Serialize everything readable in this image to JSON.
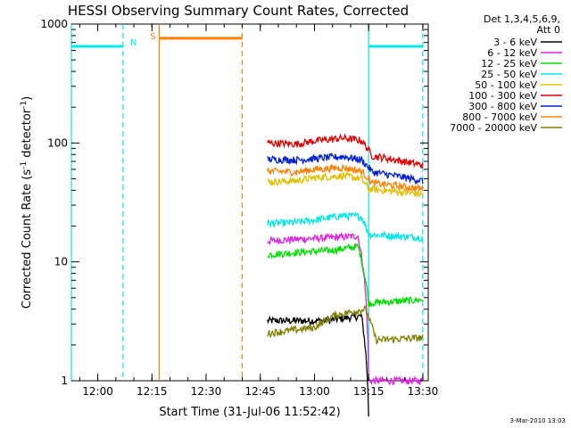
{
  "chart_data": {
    "type": "line",
    "title": "HESSI Observing Summary Count Rates, Corrected",
    "xlabel": "Start Time (31-Jul-06 11:52:42)",
    "ylabel_main": "Corrected Count Rate (s",
    "ylabel_sup1": "-1",
    "ylabel_mid": " detector",
    "ylabel_sup2": "-1",
    "ylabel_end": ")",
    "yscale": "log",
    "ylim": [
      1,
      1000
    ],
    "xlim": [
      "11:52:42",
      "13:31:30"
    ],
    "x_tick_labels": [
      "12:00",
      "12:15",
      "12:30",
      "12:45",
      "13:00",
      "13:15",
      "13:30"
    ],
    "y_tick_labels": [
      "1",
      "10",
      "100",
      "1000"
    ],
    "legend_header": [
      "Det 1,3,4,5,6,9,",
      "Att 0"
    ],
    "legend_position": "top-right-outside",
    "footer": "3-Mar-2010 13:03",
    "series": [
      {
        "name": "3 - 6 keV",
        "color": "#000000",
        "points": [
          [
            "12:47",
            3.2
          ],
          [
            "13:03",
            3.2
          ],
          [
            "13:13",
            3.5
          ],
          [
            "13:15",
            0.5
          ]
        ]
      },
      {
        "name": "6 - 12 keV",
        "color": "#e020e0",
        "points": [
          [
            "12:47",
            15
          ],
          [
            "12:55",
            15.5
          ],
          [
            "13:05",
            16
          ],
          [
            "13:12",
            16.5
          ],
          [
            "13:15",
            1.0
          ],
          [
            "13:30",
            1.0
          ]
        ]
      },
      {
        "name": "12 - 25 keV",
        "color": "#00e000",
        "points": [
          [
            "12:47",
            11.5
          ],
          [
            "12:55",
            12
          ],
          [
            "13:05",
            12.5
          ],
          [
            "13:12",
            13.5
          ],
          [
            "13:15",
            4.5
          ],
          [
            "13:30",
            4.8
          ]
        ]
      },
      {
        "name": "25 - 50 keV",
        "color": "#00e8e8",
        "points": [
          [
            "12:47",
            21
          ],
          [
            "12:55",
            21.5
          ],
          [
            "13:00",
            22.5
          ],
          [
            "13:08",
            24.5
          ],
          [
            "13:13",
            24
          ],
          [
            "13:15",
            17
          ],
          [
            "13:30",
            16
          ]
        ]
      },
      {
        "name": "50 - 100 keV",
        "color": "#e0c000",
        "points": [
          [
            "12:47",
            47
          ],
          [
            "12:55",
            48
          ],
          [
            "13:00",
            51
          ],
          [
            "13:08",
            53
          ],
          [
            "13:13",
            50
          ],
          [
            "13:15",
            41
          ],
          [
            "13:30",
            37
          ]
        ]
      },
      {
        "name": "100 - 300 keV",
        "color": "#e00000",
        "points": [
          [
            "12:47",
            100
          ],
          [
            "12:55",
            98
          ],
          [
            "13:00",
            104
          ],
          [
            "13:08",
            110
          ],
          [
            "13:13",
            105
          ],
          [
            "13:16",
            78
          ],
          [
            "13:30",
            65
          ]
        ]
      },
      {
        "name": "300 - 800 keV",
        "color": "#0020d0",
        "points": [
          [
            "12:47",
            73
          ],
          [
            "12:55",
            72
          ],
          [
            "13:00",
            74
          ],
          [
            "13:08",
            77
          ],
          [
            "13:13",
            72
          ],
          [
            "13:16",
            57
          ],
          [
            "13:30",
            48
          ]
        ]
      },
      {
        "name": "800 - 7000 keV",
        "color": "#ff8000",
        "points": [
          [
            "12:47",
            58
          ],
          [
            "12:55",
            57
          ],
          [
            "13:00",
            60
          ],
          [
            "13:08",
            62
          ],
          [
            "13:13",
            58
          ],
          [
            "13:16",
            46
          ],
          [
            "13:30",
            41
          ]
        ]
      },
      {
        "name": "7000 - 20000 keV",
        "color": "#808000",
        "points": [
          [
            "12:47",
            2.5
          ],
          [
            "13:00",
            2.8
          ],
          [
            "13:05",
            3.5
          ],
          [
            "13:14",
            4.0
          ],
          [
            "13:17",
            2.2
          ],
          [
            "13:30",
            2.3
          ]
        ]
      }
    ],
    "annotations": [
      {
        "label": "N",
        "color": "#00e8e8",
        "level": 650,
        "spans": [
          [
            "11:52:42",
            "12:07"
          ],
          [
            "13:15",
            "13:30"
          ]
        ],
        "solid_at": [
          "11:52:42",
          "13:15"
        ],
        "dashed_at": [
          "12:07",
          "13:30"
        ]
      },
      {
        "label": "S",
        "color": "#ff8000",
        "level": 760,
        "spans": [
          [
            "12:17",
            "12:40"
          ]
        ],
        "solid_at": [
          "12:17"
        ],
        "dashed_at": [
          "12:40"
        ]
      }
    ]
  }
}
